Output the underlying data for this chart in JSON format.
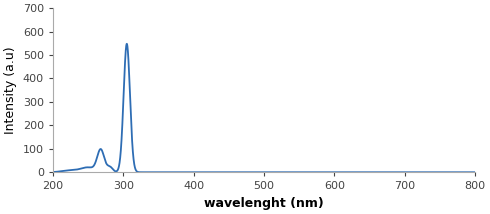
{
  "xlabel": "wavelenght (nm)",
  "ylabel": "Intensity (a.u)",
  "xlim": [
    200,
    800
  ],
  "ylim": [
    0,
    700
  ],
  "xticks": [
    200,
    300,
    400,
    500,
    600,
    700,
    800
  ],
  "yticks": [
    0,
    100,
    200,
    300,
    400,
    500,
    600,
    700
  ],
  "line_color": "#2e6db4",
  "line_width": 1.3,
  "background_color": "#ffffff",
  "figsize": [
    4.9,
    2.14
  ],
  "dpi": 100
}
